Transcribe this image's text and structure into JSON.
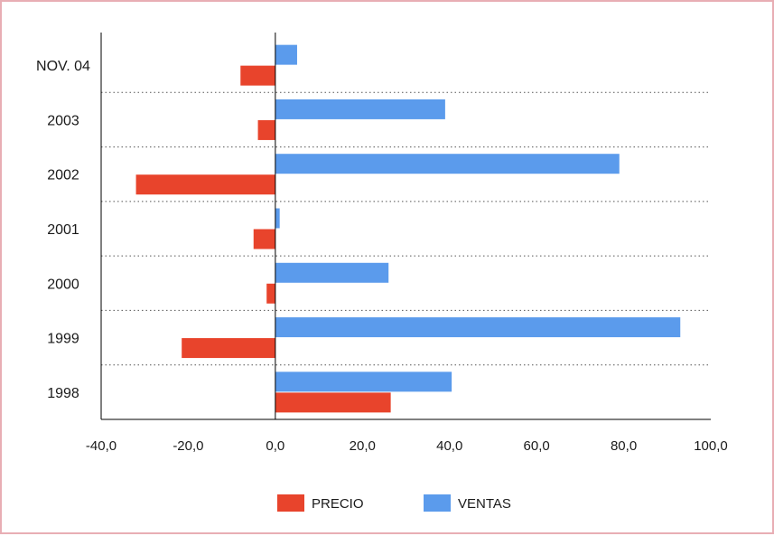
{
  "chart_data": {
    "type": "bar",
    "orientation": "horizontal",
    "categories": [
      "NOV. 04",
      "2003",
      "2002",
      "2001",
      "2000",
      "1999",
      "1998"
    ],
    "series": [
      {
        "name": "VENTAS",
        "color": "#5b9bec",
        "values": [
          5,
          39,
          79,
          1,
          26,
          93,
          40.5
        ]
      },
      {
        "name": "PRECIO",
        "color": "#e8442c",
        "values": [
          -8,
          -4,
          -32,
          -5,
          -2,
          -21.5,
          26.5
        ]
      }
    ],
    "xlim": [
      -40,
      100
    ],
    "xticks": [
      "-40,0",
      "-20,0",
      "0,0",
      "20,0",
      "40,0",
      "60,0",
      "80,0",
      "100,0"
    ],
    "xlabel": "",
    "ylabel": "",
    "grid": "dotted horizontal separators between categories",
    "legend": "bottom-center"
  }
}
